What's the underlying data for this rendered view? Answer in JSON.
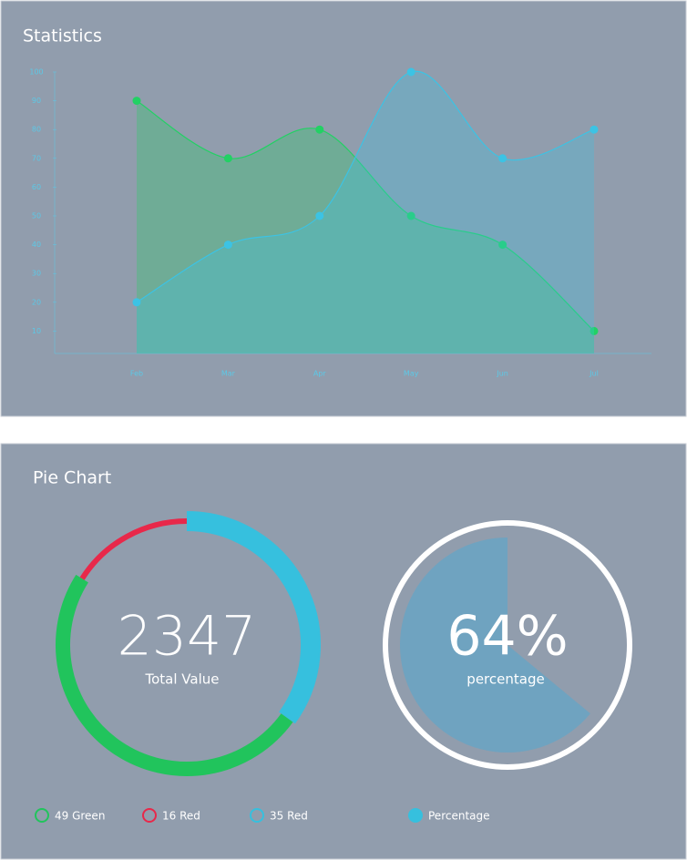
{
  "chart_data": [
    {
      "type": "area",
      "title": "Statistics",
      "categories": [
        "Feb",
        "Mar",
        "Apr",
        "May",
        "Jun",
        "Jul"
      ],
      "series": [
        {
          "color": "#22d164",
          "values": [
            90,
            70,
            80,
            50,
            40,
            10
          ]
        },
        {
          "color": "#3cc3e4",
          "values": [
            20,
            40,
            50,
            100,
            70,
            80
          ]
        }
      ],
      "ylim": [
        0,
        100
      ],
      "yticks": [
        10,
        20,
        30,
        40,
        50,
        60,
        70,
        80,
        90,
        100
      ]
    },
    {
      "type": "donut",
      "title": "Pie Chart",
      "center_value": 2347,
      "center_label": "Total Value",
      "series": [
        {
          "name": "49 Green",
          "color": "#21c45c",
          "value": 49
        },
        {
          "name": "16 Red",
          "color": "#e8284a",
          "value": 16
        },
        {
          "name": "35 Red",
          "color": "#36c0de",
          "value": 35
        }
      ]
    },
    {
      "type": "pie",
      "value": 64,
      "value_label": "64%",
      "label": "percentage",
      "legend": "Percentage",
      "color": "#6fa3c0"
    }
  ]
}
